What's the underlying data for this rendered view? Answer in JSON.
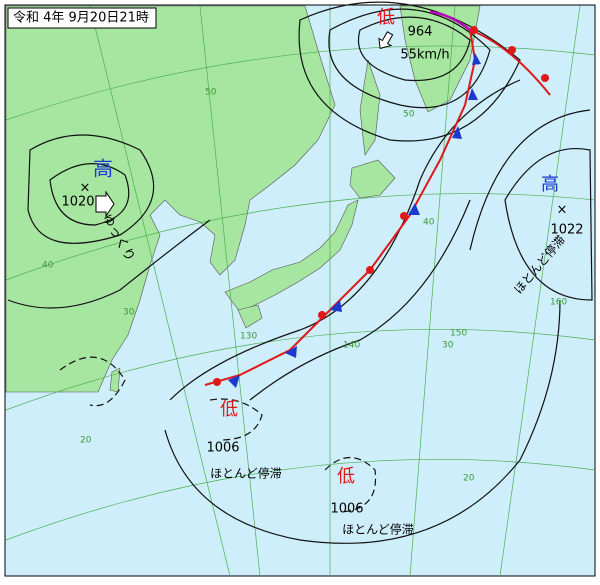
{
  "header": {
    "title": "令和 4年 9月20日21時"
  },
  "systems": [
    {
      "kind": "高",
      "pressure": 1020,
      "motion": "ゆっくり"
    },
    {
      "kind": "低",
      "pressure": 964,
      "motion": "55km/h"
    },
    {
      "kind": "高",
      "pressure": 1022,
      "motion": "ほとんど停滞"
    },
    {
      "kind": "低",
      "pressure": 1006,
      "motion": "ほとんど停滞"
    },
    {
      "kind": "低",
      "pressure": 1006,
      "motion": "ほとんど停滞"
    }
  ],
  "grid_labels": [
    "50",
    "40",
    "30",
    "20",
    "50",
    "40",
    "30",
    "20",
    "130",
    "140",
    "150",
    "160"
  ]
}
